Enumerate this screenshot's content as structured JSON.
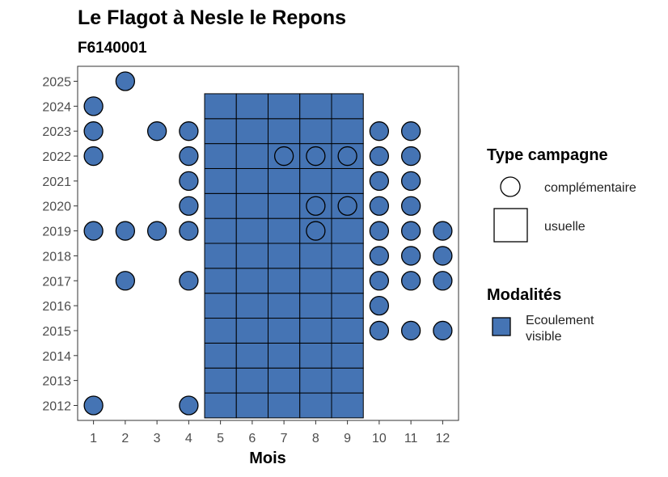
{
  "chart_data": {
    "type": "scatter",
    "title": "Le Flagot à Nesle le Repons",
    "subtitle": "F6140001",
    "xlabel": "Mois",
    "ylabel": "",
    "xlim": [
      0.5,
      12.5
    ],
    "ylim": [
      2011.4,
      2025.6
    ],
    "x_ticks": [
      1,
      2,
      3,
      4,
      5,
      6,
      7,
      8,
      9,
      10,
      11,
      12
    ],
    "y_ticks": [
      2012,
      2013,
      2014,
      2015,
      2016,
      2017,
      2018,
      2019,
      2020,
      2021,
      2022,
      2023,
      2024,
      2025
    ],
    "grid": false,
    "fill_color": "#4574b4",
    "legend": {
      "placement": "right",
      "shape_title": "Type campagne",
      "shape_items": [
        {
          "label": "complémentaire",
          "shape": "circle"
        },
        {
          "label": "usuelle",
          "shape": "square"
        }
      ],
      "fill_title": "Modalités",
      "fill_items": [
        {
          "label_line1": "Ecoulement",
          "label_line2": "visible",
          "color": "#4574b4"
        }
      ]
    },
    "usuelle": {
      "months": [
        5,
        6,
        7,
        8,
        9
      ],
      "year_from": 2012,
      "year_to": 2024
    },
    "complementaire": [
      [
        2,
        2025
      ],
      [
        1,
        2024
      ],
      [
        1,
        2023
      ],
      [
        3,
        2023
      ],
      [
        4,
        2023
      ],
      [
        10,
        2023
      ],
      [
        11,
        2023
      ],
      [
        1,
        2022
      ],
      [
        4,
        2022
      ],
      [
        7,
        2022
      ],
      [
        8,
        2022
      ],
      [
        9,
        2022
      ],
      [
        10,
        2022
      ],
      [
        11,
        2022
      ],
      [
        4,
        2021
      ],
      [
        10,
        2021
      ],
      [
        11,
        2021
      ],
      [
        4,
        2020
      ],
      [
        8,
        2020
      ],
      [
        9,
        2020
      ],
      [
        10,
        2020
      ],
      [
        11,
        2020
      ],
      [
        1,
        2019
      ],
      [
        2,
        2019
      ],
      [
        3,
        2019
      ],
      [
        4,
        2019
      ],
      [
        8,
        2019
      ],
      [
        10,
        2019
      ],
      [
        11,
        2019
      ],
      [
        12,
        2019
      ],
      [
        10,
        2018
      ],
      [
        11,
        2018
      ],
      [
        12,
        2018
      ],
      [
        2,
        2017
      ],
      [
        4,
        2017
      ],
      [
        10,
        2017
      ],
      [
        11,
        2017
      ],
      [
        12,
        2017
      ],
      [
        10,
        2016
      ],
      [
        10,
        2015
      ],
      [
        11,
        2015
      ],
      [
        12,
        2015
      ],
      [
        1,
        2012
      ],
      [
        4,
        2012
      ]
    ]
  }
}
